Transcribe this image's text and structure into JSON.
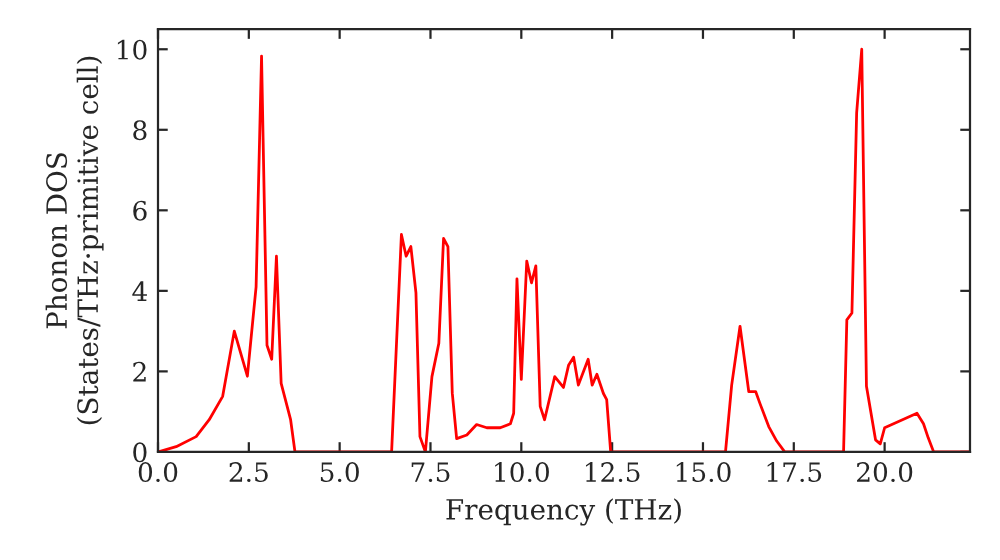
{
  "chart_data": {
    "type": "line",
    "xlabel": "Frequency (THz)",
    "ylabel": "Phonon DOS\n(States/THz·primitive cell)",
    "xlim": [
      0,
      22.35
    ],
    "ylim": [
      0,
      10.5
    ],
    "xticks": [
      {
        "value": 0,
        "label": "0.0"
      },
      {
        "value": 2.5,
        "label": "2.5"
      },
      {
        "value": 5,
        "label": "5.0"
      },
      {
        "value": 7.5,
        "label": "7.5"
      },
      {
        "value": 10,
        "label": "10.0"
      },
      {
        "value": 12.5,
        "label": "12.5"
      },
      {
        "value": 15,
        "label": "15.0"
      },
      {
        "value": 17.5,
        "label": "17.5"
      },
      {
        "value": 20,
        "label": "20.0"
      }
    ],
    "yticks": [
      0,
      2,
      4,
      6,
      8,
      10
    ],
    "grid": false,
    "series": [
      {
        "color": "#ff0000",
        "x": [
          0.0,
          0.5,
          1.05,
          1.41,
          1.78,
          2.1,
          2.46,
          2.7,
          2.85,
          3.0,
          3.13,
          3.26,
          3.39,
          3.65,
          3.77,
          6.43,
          6.7,
          6.83,
          6.96,
          7.1,
          7.21,
          7.36,
          7.54,
          7.73,
          7.86,
          7.98,
          8.1,
          8.22,
          8.5,
          8.77,
          9.05,
          9.42,
          9.7,
          9.79,
          9.88,
          10.0,
          10.15,
          10.28,
          10.4,
          10.52,
          10.64,
          10.92,
          11.16,
          11.3,
          11.44,
          11.57,
          11.84,
          11.95,
          12.08,
          12.26,
          12.35,
          12.46,
          15.62,
          15.79,
          16.02,
          16.26,
          16.45,
          16.57,
          16.81,
          17.03,
          17.25,
          18.87,
          18.96,
          19.1,
          19.23,
          19.37,
          19.5,
          19.75,
          19.88,
          20.0,
          20.89,
          21.07,
          21.2,
          21.35,
          22.35
        ],
        "values": [
          0.0,
          0.13,
          0.38,
          0.8,
          1.38,
          3.0,
          1.88,
          4.1,
          9.83,
          2.65,
          2.3,
          4.86,
          1.7,
          0.8,
          0.0,
          0.0,
          5.4,
          4.86,
          5.1,
          3.95,
          0.38,
          0.0,
          1.87,
          2.7,
          5.3,
          5.1,
          1.46,
          0.33,
          0.42,
          0.68,
          0.6,
          0.6,
          0.7,
          0.96,
          4.3,
          1.8,
          4.74,
          4.2,
          4.62,
          1.13,
          0.8,
          1.87,
          1.6,
          2.15,
          2.35,
          1.66,
          2.3,
          1.66,
          1.93,
          1.45,
          1.3,
          0.0,
          0.0,
          1.66,
          3.12,
          1.5,
          1.5,
          1.2,
          0.63,
          0.27,
          0.0,
          0.0,
          3.28,
          3.45,
          8.42,
          10.0,
          1.63,
          0.3,
          0.2,
          0.6,
          0.96,
          0.7,
          0.35,
          0.0,
          0.0
        ]
      }
    ]
  }
}
